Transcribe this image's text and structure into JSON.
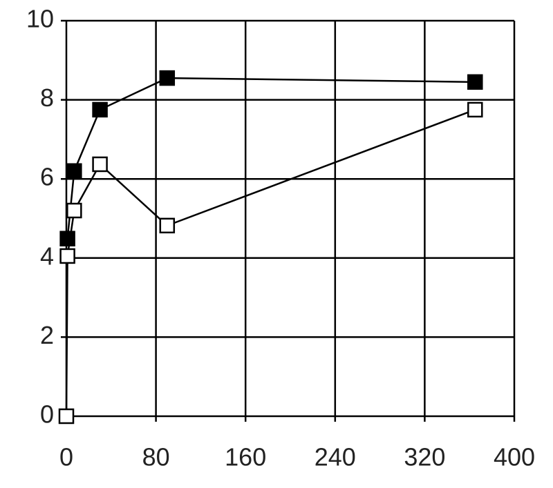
{
  "chart_data": {
    "type": "line",
    "xlim": [
      0,
      400
    ],
    "ylim": [
      0,
      10
    ],
    "xticks": [
      0,
      80,
      160,
      240,
      320,
      400
    ],
    "yticks": [
      0,
      2,
      4,
      6,
      8,
      10
    ],
    "grid": true,
    "series": [
      {
        "color": "#000000",
        "fill": "#000000",
        "x": [
          1,
          7,
          30,
          90,
          365
        ],
        "values": [
          4.49,
          6.2,
          7.75,
          8.55,
          8.45
        ]
      },
      {
        "color": "#000000",
        "fill": "#ffffff",
        "x": [
          0,
          1,
          7,
          30,
          90,
          365
        ],
        "values": [
          0,
          4.05,
          5.2,
          6.37,
          4.82,
          7.75
        ]
      }
    ]
  }
}
